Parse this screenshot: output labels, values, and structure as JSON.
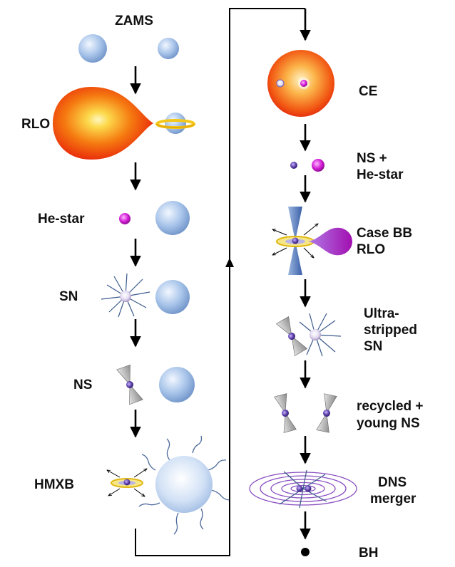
{
  "labels": {
    "zams": "ZAMS",
    "rlo": "RLO",
    "he_star": "He-star",
    "sn": "SN",
    "ns": "NS",
    "hmxb": "HMXB",
    "ce": "CE",
    "ns_he_star": [
      "NS +",
      "He-star"
    ],
    "case_bb_rlo": [
      "Case BB",
      "RLO"
    ],
    "ultra_stripped_sn": [
      "Ultra-",
      "stripped",
      "SN"
    ],
    "recycled_young_ns": [
      "recycled +",
      "young NS"
    ],
    "dns_merger": [
      "DNS",
      "merger"
    ],
    "bh": "BH"
  },
  "colors": {
    "star_blue": "#9fbde6",
    "star_blue_dark": "#6f93c8",
    "giant_outer": "#e8200a",
    "giant_mid": "#f57a10",
    "giant_core": "#fff7c0",
    "he_star": "#d21bd6",
    "neutron_star": "#5b3ea8",
    "accretion_disk": "#f3c81a",
    "merger_ring": "#8a4fc2",
    "jet_gray": "#a5a5a5",
    "arrow": "#000000"
  },
  "icons": {
    "arrow": "down-arrow-icon",
    "connector": "flow-connector-icon",
    "neutron_star": "neutron-star-icon",
    "supernova": "supernova-burst-icon"
  }
}
